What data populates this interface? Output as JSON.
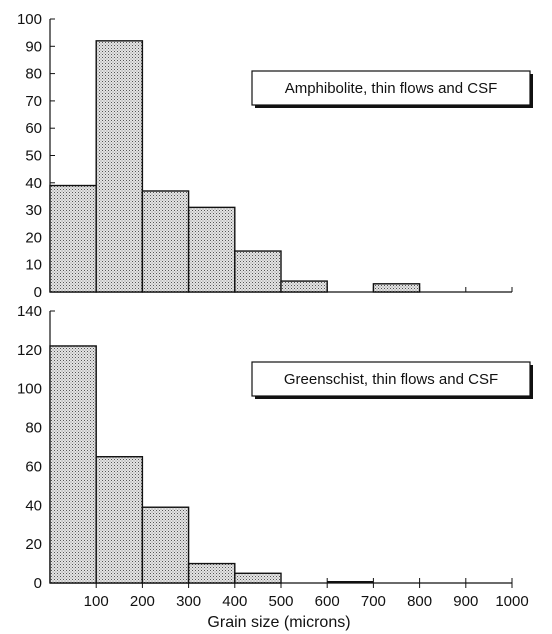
{
  "chart_data": [
    {
      "type": "bar",
      "panel": "top",
      "legend": "Amphibolite, thin flows and CSF",
      "bin_edges": [
        0,
        100,
        200,
        300,
        400,
        500,
        600,
        700,
        800,
        900,
        1000
      ],
      "values": [
        39,
        92,
        37,
        31,
        15,
        4,
        0,
        3,
        0,
        0
      ],
      "ylim": [
        0,
        100
      ],
      "yticks": [
        0,
        10,
        20,
        30,
        40,
        50,
        60,
        70,
        80,
        90,
        100
      ]
    },
    {
      "type": "bar",
      "panel": "bottom",
      "legend": "Greenschist, thin flows and CSF",
      "bin_edges": [
        0,
        100,
        200,
        300,
        400,
        500,
        600,
        700,
        800,
        900,
        1000
      ],
      "values": [
        122,
        65,
        39,
        10,
        5,
        0,
        1,
        0,
        0,
        0
      ],
      "ylim": [
        0,
        140
      ],
      "yticks": [
        0,
        20,
        40,
        60,
        80,
        100,
        120,
        140
      ]
    }
  ],
  "xaxis": {
    "xlim": [
      0,
      1000
    ],
    "tick_values": [
      100,
      200,
      300,
      400,
      500,
      600,
      700,
      800,
      900,
      1000
    ],
    "tick_labels": [
      "100",
      "200",
      "300",
      "400",
      "500",
      "600",
      "700",
      "800",
      "900",
      "1000"
    ],
    "label": "Grain size (microns)"
  },
  "colors": {
    "bar_fill": "#dcdcdc",
    "bar_stroke": "#111111",
    "stipple": "#555555"
  }
}
